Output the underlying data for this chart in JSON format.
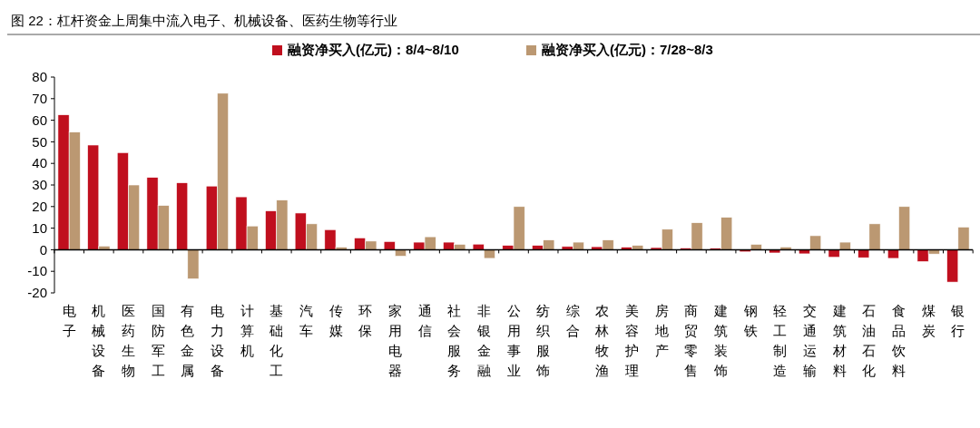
{
  "chart_data": {
    "type": "bar",
    "title": "图 22：杠杆资金上周集中流入电子、机械设备、医药生物等行业",
    "categories": [
      "电子",
      "机械设备",
      "医药生物",
      "国防军工",
      "有色金属",
      "电力设备",
      "计算机",
      "基础化工",
      "汽车",
      "传媒",
      "环保",
      "家用电器",
      "通信",
      "社会服务",
      "非银金融",
      "公用事业",
      "纺织服饰",
      "综合",
      "农林牧渔",
      "美容护理",
      "房地产",
      "商贸零售",
      "建筑装饰",
      "钢铁",
      "轻工制造",
      "交通运输",
      "建筑材料",
      "石油石化",
      "食品饮料",
      "煤炭",
      "银行"
    ],
    "series": [
      {
        "name": "融资净买入(亿元)：8/4~8/10",
        "color": "#c00f1e",
        "values": [
          62.5,
          48.5,
          45,
          33.5,
          31,
          29.5,
          24.5,
          18,
          17,
          9.3,
          5.5,
          3.8,
          3.5,
          3.5,
          2.6,
          2,
          2,
          1.5,
          1.4,
          1.2,
          1,
          0.8,
          0.7,
          -1,
          -1.5,
          -1.9,
          -3.5,
          -3.7,
          -4,
          -5.5,
          -15
        ]
      },
      {
        "name": "融资净买入(亿元)：7/28~8/3",
        "color": "#bb9872",
        "values": [
          54.5,
          1.7,
          30,
          20.5,
          -13.5,
          72.5,
          11,
          23,
          12,
          1.2,
          4,
          -3,
          6,
          2.5,
          -4,
          20,
          4.5,
          3.5,
          4.5,
          2,
          9.5,
          12.5,
          15,
          2.5,
          1.3,
          6.5,
          3.5,
          12,
          20,
          -2,
          10.5
        ]
      }
    ],
    "ylim": [
      -20,
      80
    ],
    "yticks": [
      -20,
      -10,
      0,
      10,
      20,
      30,
      40,
      50,
      60,
      70,
      80
    ],
    "legend": "top"
  }
}
